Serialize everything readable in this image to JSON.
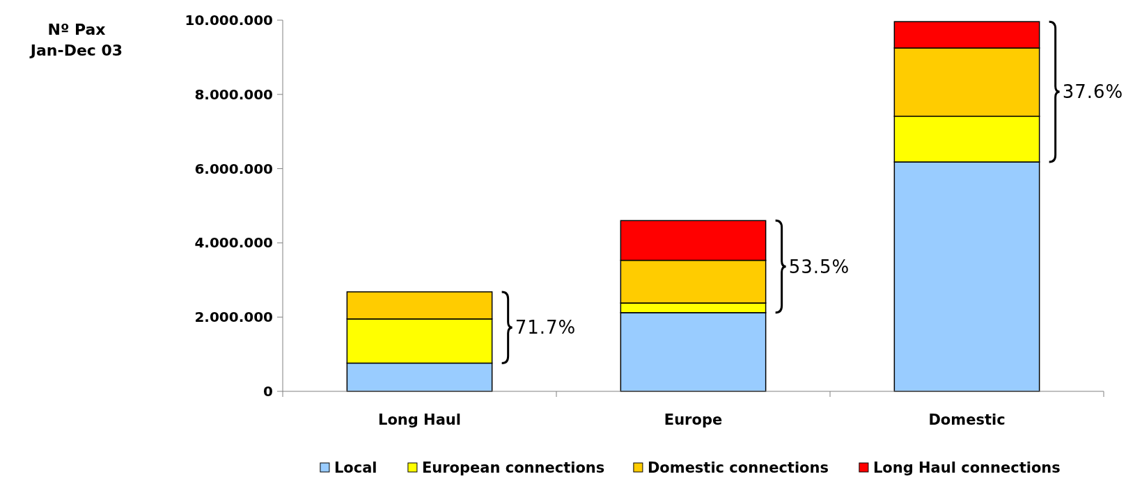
{
  "chart_data": {
    "type": "bar",
    "stacked": true,
    "ylabel": "Nº Pax\nJan-Dec 03",
    "categories": [
      "Long Haul",
      "Europe",
      "Domestic"
    ],
    "series": [
      {
        "name": "Local",
        "color": "#99ccff",
        "values": [
          760000,
          2120000,
          6180000
        ]
      },
      {
        "name": "European connections",
        "color": "#ffff00",
        "values": [
          1190000,
          260000,
          1230000
        ]
      },
      {
        "name": "Domestic connections",
        "color": "#ffcc00",
        "values": [
          730000,
          1150000,
          1840000
        ]
      },
      {
        "name": "Long Haul connections",
        "color": "#ff0000",
        "values": [
          0,
          1070000,
          710000
        ]
      }
    ],
    "ylim": [
      0,
      10000000
    ],
    "yticks": [
      {
        "value": 0,
        "label": "0"
      },
      {
        "value": 2000000,
        "label": "2.000.000"
      },
      {
        "value": 4000000,
        "label": "4.000.000"
      },
      {
        "value": 6000000,
        "label": "6.000.000"
      },
      {
        "value": 8000000,
        "label": "8.000.000"
      },
      {
        "value": 10000000,
        "label": "10.000.000"
      }
    ],
    "annotations": [
      "71.7%",
      "53.5%",
      "37.6%"
    ],
    "grid": false,
    "legend": "bottom"
  }
}
